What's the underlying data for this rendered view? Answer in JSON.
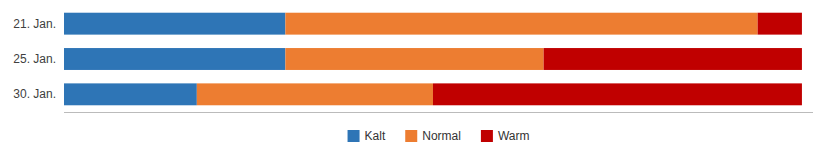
{
  "chart_data": {
    "type": "bar",
    "orientation": "horizontal",
    "stacked": true,
    "categories": [
      "21. Jan.",
      "25. Jan.",
      "30. Jan."
    ],
    "series": [
      {
        "name": "Kalt",
        "color": "#2E75B6",
        "values": [
          30,
          30,
          18
        ]
      },
      {
        "name": "Normal",
        "color": "#ED7D31",
        "values": [
          64,
          35,
          32
        ]
      },
      {
        "name": "Warm",
        "color": "#C00000",
        "values": [
          6,
          35,
          50
        ]
      }
    ],
    "xlim": [
      0,
      101.5
    ],
    "tick_labels": "y",
    "legend": "bottom",
    "grid": false
  }
}
